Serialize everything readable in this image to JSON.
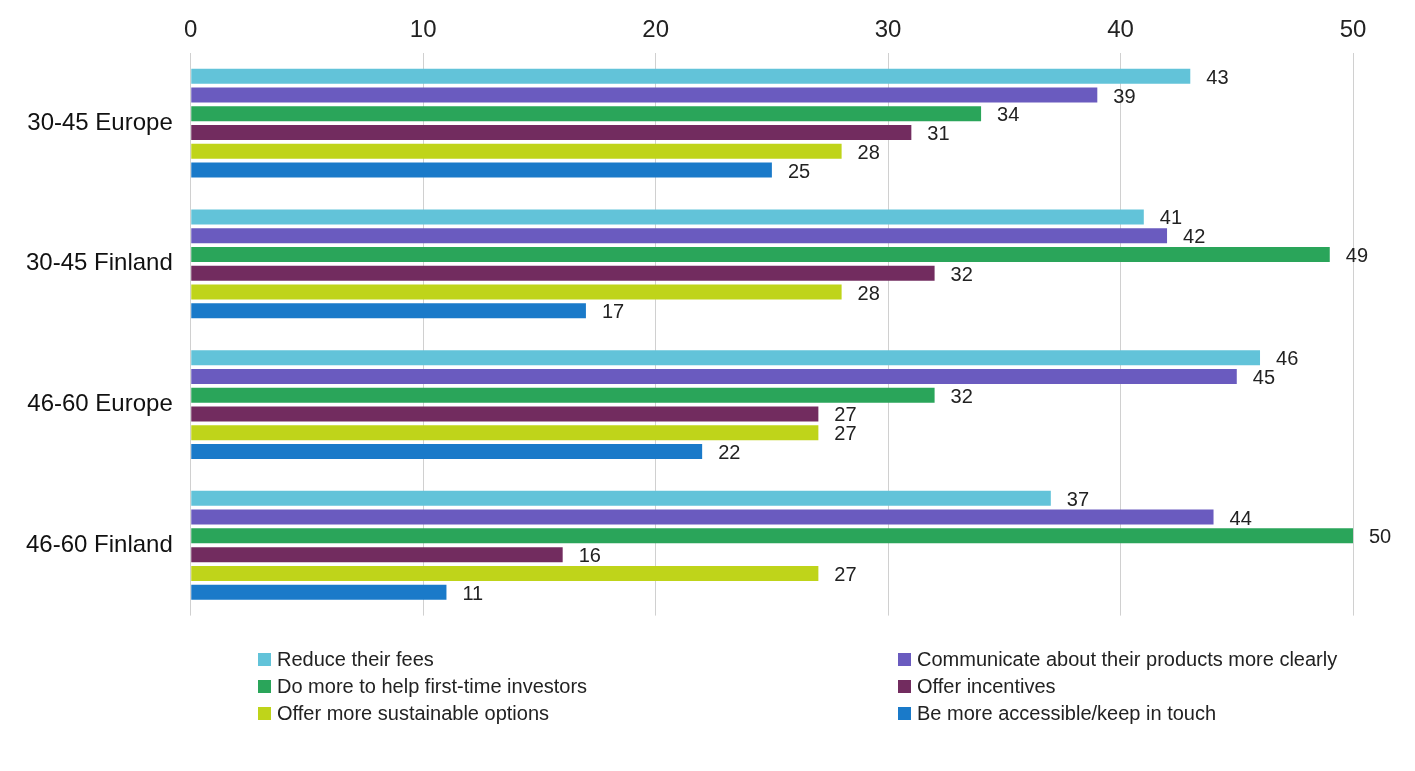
{
  "chart_data": {
    "type": "bar",
    "orientation": "horizontal",
    "categories": [
      "30-45 Europe",
      "30-45 Finland",
      "46-60 Europe",
      "46-60 Finland"
    ],
    "series": [
      {
        "name": "Reduce their fees",
        "color": "#62c3d9",
        "values": [
          43,
          41,
          46,
          37
        ]
      },
      {
        "name": "Communicate about their products more clearly",
        "color": "#6a5bbf",
        "values": [
          39,
          42,
          45,
          44
        ]
      },
      {
        "name": "Do more to help first-time investors",
        "color": "#2aa55a",
        "values": [
          34,
          49,
          32,
          50
        ]
      },
      {
        "name": "Offer incentives",
        "color": "#722c5f",
        "values": [
          31,
          32,
          27,
          16
        ]
      },
      {
        "name": "Offer more sustainable options",
        "color": "#bfd41a",
        "values": [
          28,
          28,
          27,
          27
        ]
      },
      {
        "name": "Be more accessible/keep in touch",
        "color": "#1a7ac9",
        "values": [
          25,
          17,
          22,
          11
        ]
      }
    ],
    "xlim": [
      0,
      50
    ],
    "xticks": [
      0,
      10,
      20,
      30,
      40,
      50
    ],
    "grid": "x",
    "legend": "bottom",
    "data_labels": true
  }
}
